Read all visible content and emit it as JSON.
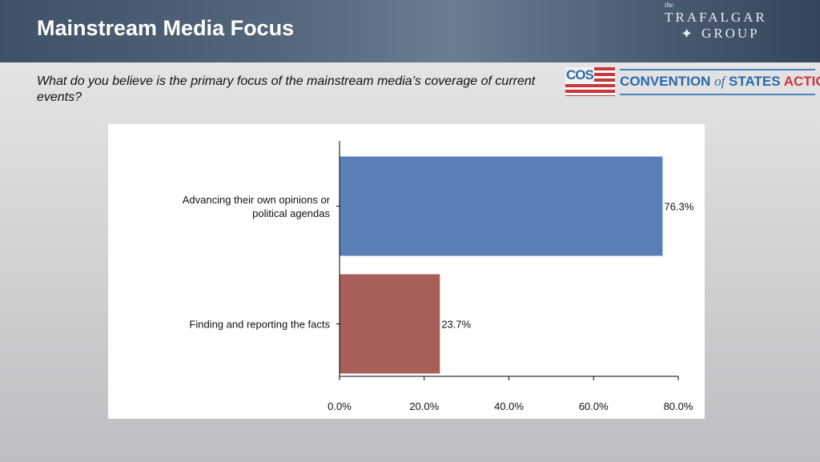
{
  "header": {
    "title": "Mainstream Media Focus",
    "logo_trafalgar": {
      "the": "the",
      "line1": "TRAFALGAR",
      "line2": "GROUP"
    }
  },
  "question": "What do you believe is the primary focus of the mainstream media’s coverage of current events?",
  "cos_logo": {
    "abbr": "COS",
    "name_part1": "CONVENTION",
    "name_of": "of",
    "name_part2": "STATES",
    "name_part3": "ACTION"
  },
  "chart_data": {
    "type": "bar",
    "orientation": "horizontal",
    "categories": [
      "Advancing their own opinions or political agendas",
      "Finding and reporting the facts"
    ],
    "values": [
      76.3,
      23.7
    ],
    "data_labels": [
      "76.3%",
      "23.7%"
    ],
    "colors": [
      "#5a7fb6",
      "#a85f59"
    ],
    "xlim": [
      0,
      80
    ],
    "xticks": [
      0,
      20,
      40,
      60,
      80
    ],
    "xtick_labels": [
      "0.0%",
      "20.0%",
      "40.0%",
      "60.0%",
      "80.0%"
    ],
    "title": "",
    "xlabel": "",
    "ylabel": "",
    "grid": false,
    "legend": "none"
  }
}
